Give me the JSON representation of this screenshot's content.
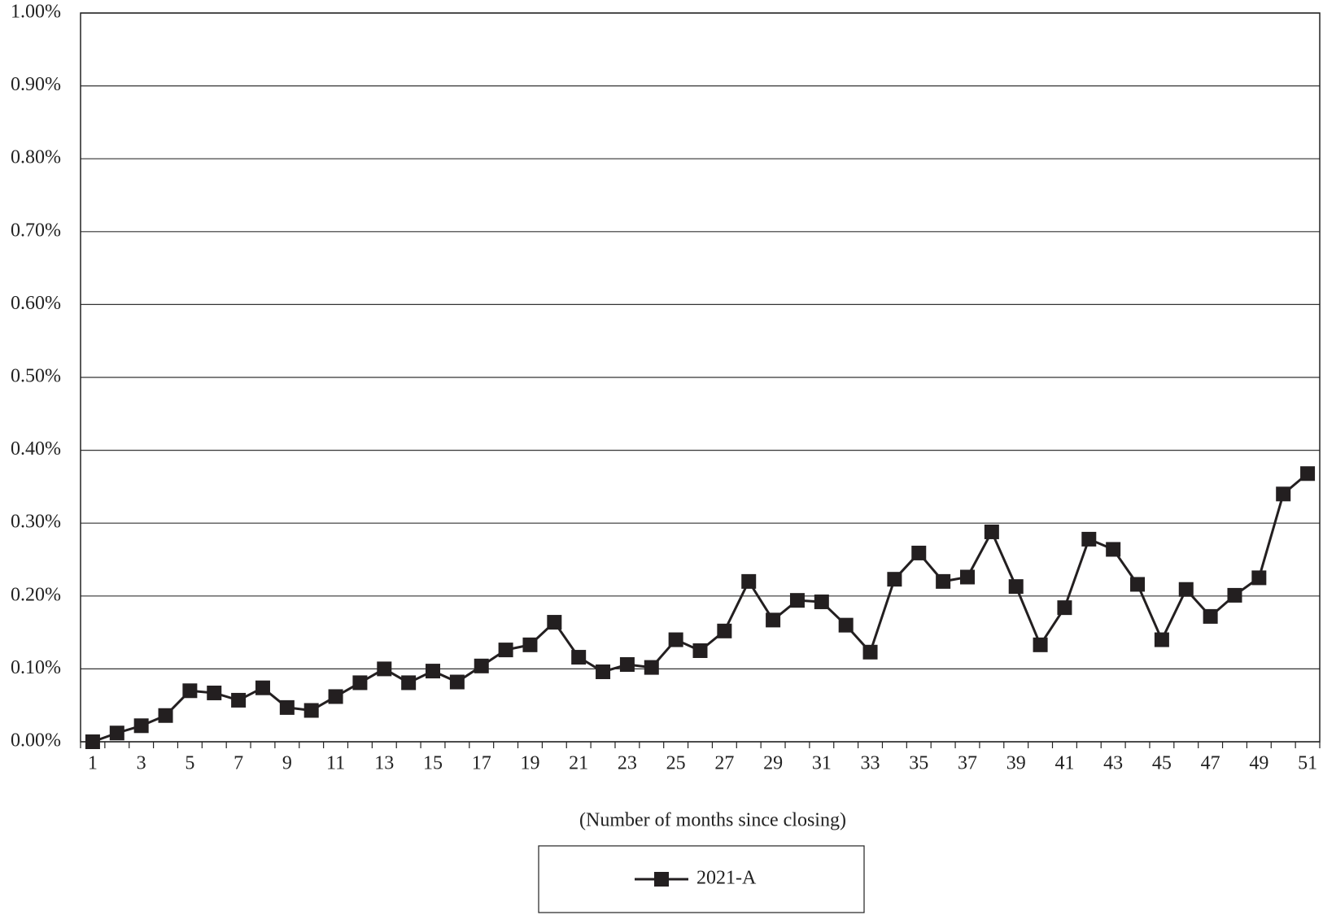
{
  "chart_data": {
    "type": "line",
    "x_label": "(Number of months since closing)",
    "categories": [
      "1",
      null,
      "3",
      null,
      "5",
      null,
      "7",
      null,
      "9",
      null,
      "11",
      null,
      "13",
      null,
      "15",
      null,
      "17",
      null,
      "19",
      null,
      "21",
      null,
      "23",
      null,
      "25",
      null,
      "27",
      null,
      "29",
      null,
      "31",
      null,
      "33",
      null,
      "35",
      null,
      "37",
      null,
      "39",
      null,
      "41",
      null,
      "43",
      null,
      "45",
      null,
      "47",
      null,
      "49",
      null,
      "51"
    ],
    "series": [
      {
        "name": "2021-A",
        "color": "#231f20",
        "values": [
          0.0,
          0.012,
          0.022,
          0.036,
          0.07,
          0.067,
          0.057,
          0.074,
          0.047,
          0.043,
          0.062,
          0.081,
          0.1,
          0.081,
          0.097,
          0.082,
          0.104,
          0.126,
          0.133,
          0.164,
          0.116,
          0.096,
          0.106,
          0.102,
          0.14,
          0.125,
          0.152,
          0.22,
          0.167,
          0.194,
          0.192,
          0.16,
          0.123,
          0.223,
          0.259,
          0.22,
          0.226,
          0.288,
          0.213,
          0.133,
          0.184,
          0.278,
          0.264,
          0.216,
          0.14,
          0.209,
          0.172,
          0.201,
          0.225,
          0.34,
          0.368
        ]
      }
    ],
    "ylim": [
      0,
      1
    ],
    "yticks": [
      {
        "value": 0,
        "label": "0.00%"
      },
      {
        "value": 0.1,
        "label": "0.10%"
      },
      {
        "value": 0.2,
        "label": "0.20%"
      },
      {
        "value": 0.3,
        "label": "0.30%"
      },
      {
        "value": 0.4,
        "label": "0.40%"
      },
      {
        "value": 0.5,
        "label": "0.50%"
      },
      {
        "value": 0.6,
        "label": "0.60%"
      },
      {
        "value": 0.7,
        "label": "0.70%"
      },
      {
        "value": 0.8,
        "label": "0.80%"
      },
      {
        "value": 0.9,
        "label": "0.90%"
      },
      {
        "value": 1,
        "label": "1.00%"
      }
    ],
    "grid": true,
    "legend": "bottom"
  }
}
